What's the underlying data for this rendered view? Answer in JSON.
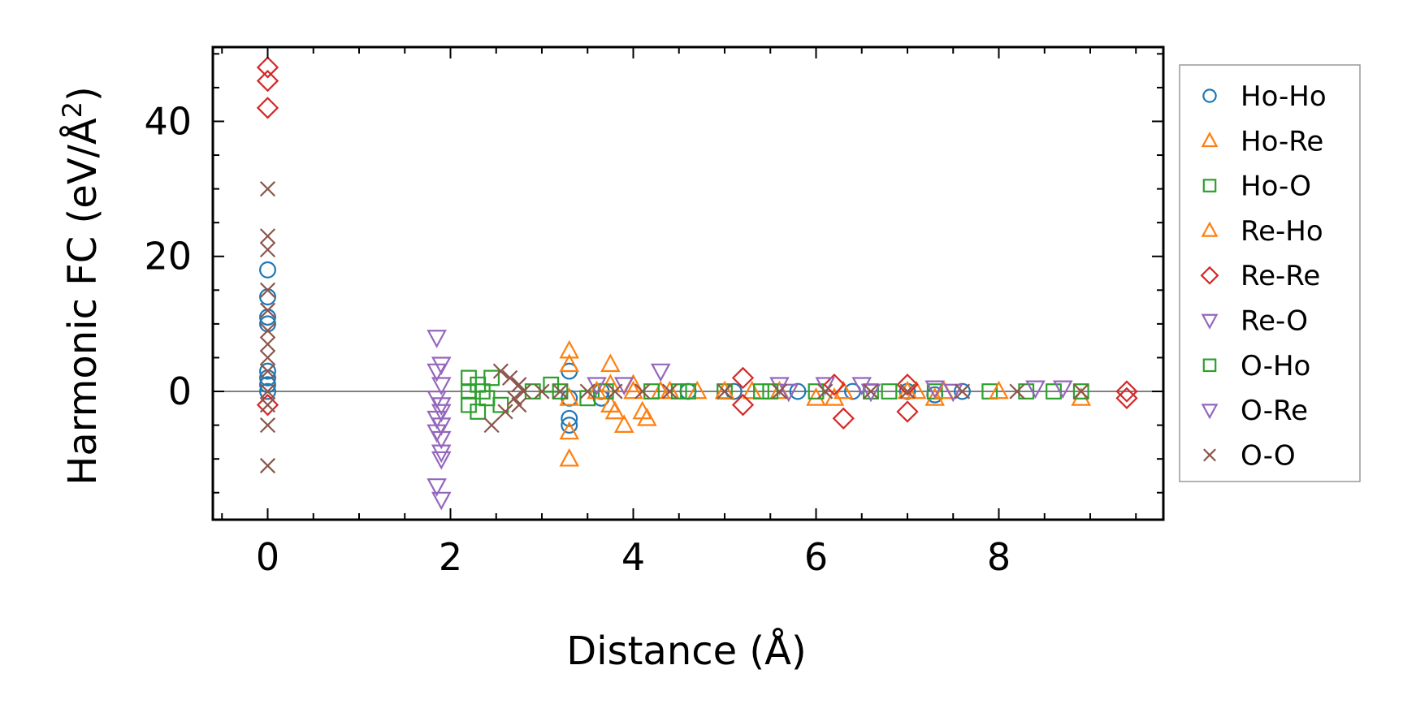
{
  "chart_data": {
    "type": "scatter",
    "title": "",
    "xlabel": "Distance (Å)",
    "ylabel": "Harmonic FC (eV/Å²)",
    "ylabel_parts": {
      "main": "Harmonic FC (eV/Å",
      "sup": "2",
      "close": ")"
    },
    "xlim": [
      -0.6,
      9.8
    ],
    "ylim": [
      -19,
      51
    ],
    "xticks": [
      0,
      2,
      4,
      6,
      8
    ],
    "xtick_labels": [
      "0",
      "2",
      "4",
      "6",
      "8"
    ],
    "yticks": [
      0,
      20,
      40
    ],
    "ytick_labels": [
      "0",
      "20",
      "40"
    ],
    "zero_line": 0,
    "grid": false,
    "legend_position": "right, outside plot",
    "series": [
      {
        "name": "Ho-Ho",
        "marker": "circle",
        "color": "#1f77b4",
        "x": [
          0,
          0,
          0,
          0,
          0,
          0,
          0,
          0,
          3.3,
          3.3,
          3.3,
          3.3,
          3.65,
          3.65,
          4.6,
          5.1,
          5.8,
          6.4,
          7.0,
          7.3,
          7.6
        ],
        "y": [
          18,
          14,
          11,
          10,
          3,
          2,
          1,
          0,
          3,
          -4,
          -5,
          -1,
          -1,
          0,
          0,
          0,
          0,
          0,
          0,
          -0.5,
          0
        ]
      },
      {
        "name": "Ho-Re",
        "marker": "triangle-up",
        "color": "#ff7f0e",
        "x": [
          3.3,
          3.3,
          3.3,
          3.3,
          3.3,
          3.75,
          3.75,
          3.75,
          3.8,
          3.9,
          4.0,
          4.1,
          4.15,
          4.3,
          4.7,
          5.3,
          6.0,
          6.2,
          7.0,
          7.3,
          8.9
        ],
        "y": [
          6,
          4,
          -1,
          -6,
          -10,
          4,
          1,
          -2,
          -3,
          -5,
          1,
          -3,
          -4,
          0,
          0,
          0,
          -1,
          -1,
          0,
          -1,
          -1
        ]
      },
      {
        "name": "Ho-O",
        "marker": "square",
        "color": "#2ca02c",
        "x": [
          2.2,
          2.2,
          2.2,
          2.3,
          2.3,
          2.4,
          2.45,
          2.55,
          2.9,
          3.1,
          3.5,
          3.7,
          4.2,
          4.6,
          5.0,
          5.4,
          6.0,
          6.6,
          7.3,
          7.9,
          8.3,
          8.6,
          8.9
        ],
        "y": [
          2,
          0,
          -2,
          -3,
          1,
          -1,
          2,
          -2,
          0,
          1,
          -1,
          0,
          0,
          0,
          0,
          0,
          0,
          0,
          0,
          0,
          0,
          0,
          0
        ]
      },
      {
        "name": "Re-Ho",
        "marker": "triangle-up",
        "color": "#ff7f0e",
        "x": [
          3.6,
          4.0,
          4.4,
          5.0,
          5.6,
          6.3,
          7.1,
          7.4,
          8.0
        ],
        "y": [
          0,
          0,
          0,
          0,
          0,
          0,
          0,
          0,
          0
        ]
      },
      {
        "name": "Re-Re",
        "marker": "diamond",
        "color": "#d62728",
        "x": [
          0,
          0,
          0,
          0,
          5.2,
          5.2,
          6.2,
          6.3,
          7.0,
          7.0,
          9.4,
          9.4
        ],
        "y": [
          48,
          46,
          42,
          -2,
          2,
          -2,
          1,
          -4,
          1,
          -3,
          0,
          -1
        ]
      },
      {
        "name": "Re-O",
        "marker": "triangle-down",
        "color": "#9467bd",
        "x": [
          1.85,
          1.85,
          1.85,
          1.85,
          1.85,
          1.85,
          1.9,
          1.9,
          1.9,
          1.9,
          1.9,
          1.9,
          1.9,
          1.9,
          1.9,
          3.6,
          4.3,
          5.6,
          6.1,
          6.5,
          7.3,
          8.4,
          8.7
        ],
        "y": [
          8,
          3,
          -1,
          -4,
          -6,
          -14,
          4,
          1,
          -2,
          -3,
          -5,
          -7,
          -9,
          -10,
          -16,
          1,
          3,
          1,
          1,
          1,
          0.5,
          0.5,
          0.5
        ]
      },
      {
        "name": "O-Ho",
        "marker": "square",
        "color": "#2ca02c",
        "x": [
          2.35,
          3.2,
          4.5,
          5.5,
          6.8
        ],
        "y": [
          0,
          0,
          0,
          0,
          0
        ]
      },
      {
        "name": "O-Re",
        "marker": "triangle-down",
        "color": "#9467bd",
        "x": [
          3.9,
          5.7,
          6.6,
          7.5
        ],
        "y": [
          1,
          0,
          0,
          0
        ]
      },
      {
        "name": "O-O",
        "marker": "x",
        "color": "#8c564b",
        "x": [
          0,
          0,
          0,
          0,
          0,
          0,
          0,
          0,
          0,
          0,
          0,
          0,
          0,
          2.45,
          2.55,
          2.6,
          2.65,
          2.7,
          2.75,
          2.75,
          2.8,
          3.0,
          3.2,
          3.5,
          3.8,
          4.1,
          4.4,
          5.0,
          5.6,
          6.1,
          6.6,
          7.0,
          7.6,
          8.2,
          8.9
        ],
        "y": [
          30,
          23,
          21,
          15,
          12,
          9,
          7,
          5,
          3,
          0,
          -2,
          -5,
          -11,
          -5,
          3,
          -3,
          2,
          -1,
          1,
          -2,
          0,
          0,
          0,
          0,
          0,
          0,
          0,
          0,
          0,
          0,
          0,
          0,
          0,
          0,
          0
        ]
      }
    ]
  }
}
